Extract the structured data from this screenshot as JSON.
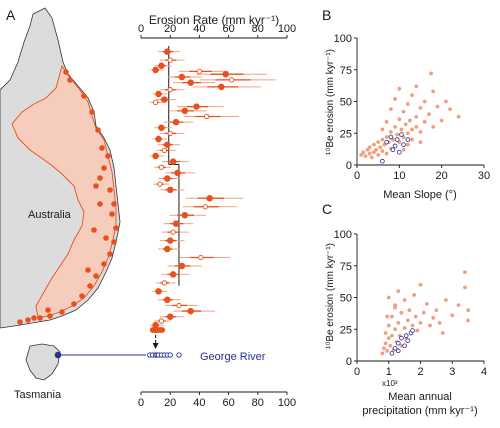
{
  "colors": {
    "orange": "#e8501c",
    "orange_light": "#f2a283",
    "salmon": "#f0a07f",
    "navy": "#2b2f8f",
    "land": "#dcdcdc",
    "outline": "#333333"
  },
  "panel_labels": {
    "a": "A",
    "b": "B",
    "c": "C"
  },
  "map": {
    "label_australia": "Australia",
    "label_tasmania": "Tasmania",
    "label_george": "George River"
  },
  "chart_data": [
    {
      "id": "A",
      "type": "scatter",
      "title": "Erosion Rate (mm kyr⁻¹)",
      "xlim": [
        0,
        100
      ],
      "xticks": [
        0,
        20,
        40,
        60,
        80,
        100
      ],
      "mean_lines": [
        {
          "value": 19,
          "from": 0,
          "to": 0.42
        },
        {
          "value": 26,
          "from": 0.42,
          "to": 0.85
        }
      ],
      "george_mean": 10,
      "series": [
        {
          "name": "Catchments",
          "points": [
            [
              18,
              0.02
            ],
            [
              20,
              0.05
            ],
            [
              14,
              0.07
            ],
            [
              10,
              0.085
            ],
            [
              40,
              0.09
            ],
            [
              58,
              0.1
            ],
            [
              28,
              0.11
            ],
            [
              62,
              0.12
            ],
            [
              34,
              0.13
            ],
            [
              55,
              0.145
            ],
            [
              20,
              0.155
            ],
            [
              12,
              0.17
            ],
            [
              16,
              0.19
            ],
            [
              10,
              0.2
            ],
            [
              38,
              0.215
            ],
            [
              30,
              0.23
            ],
            [
              45,
              0.25
            ],
            [
              24,
              0.27
            ],
            [
              14,
              0.29
            ],
            [
              20,
              0.31
            ],
            [
              12,
              0.33
            ],
            [
              18,
              0.35
            ],
            [
              16,
              0.37
            ],
            [
              10,
              0.39
            ],
            [
              22,
              0.41
            ],
            [
              14,
              0.43
            ],
            [
              25,
              0.45
            ],
            [
              18,
              0.47
            ],
            [
              13,
              0.49
            ],
            [
              20,
              0.51
            ],
            [
              47,
              0.54
            ],
            [
              44,
              0.57
            ],
            [
              30,
              0.6
            ],
            [
              24,
              0.63
            ],
            [
              22,
              0.66
            ],
            [
              20,
              0.69
            ],
            [
              18,
              0.72
            ],
            [
              41,
              0.75
            ],
            [
              28,
              0.78
            ],
            [
              22,
              0.81
            ],
            [
              16,
              0.84
            ],
            [
              12,
              0.87
            ],
            [
              18,
              0.9
            ],
            [
              26,
              0.92
            ],
            [
              34,
              0.94
            ],
            [
              20,
              0.96
            ],
            [
              14,
              0.975
            ],
            [
              10,
              0.99
            ]
          ]
        },
        {
          "name": "George River",
          "points": [
            [
              6,
              0
            ],
            [
              8,
              0
            ],
            [
              10,
              0
            ],
            [
              11,
              0
            ],
            [
              12,
              0
            ],
            [
              14,
              0
            ],
            [
              16,
              0
            ],
            [
              18,
              0
            ],
            [
              20,
              0
            ],
            [
              26,
              0
            ]
          ]
        }
      ]
    },
    {
      "id": "B",
      "type": "scatter",
      "xlabel": "Mean Slope (°)",
      "ylabel": "¹⁰Be erosion (mm kyr⁻¹)",
      "xlim": [
        0,
        30
      ],
      "xticks": [
        0,
        10,
        20,
        30
      ],
      "ylim": [
        0,
        100
      ],
      "yticks": [
        0,
        25,
        50,
        75,
        100
      ],
      "series": [
        {
          "name": "Catchments",
          "points": [
            [
              1,
              8
            ],
            [
              1.5,
              10
            ],
            [
              2,
              7
            ],
            [
              2.5,
              12
            ],
            [
              3,
              9
            ],
            [
              3,
              14
            ],
            [
              3.5,
              6
            ],
            [
              4,
              10
            ],
            [
              4,
              16
            ],
            [
              4.5,
              12
            ],
            [
              5,
              8
            ],
            [
              5,
              18
            ],
            [
              5.5,
              14
            ],
            [
              6,
              11
            ],
            [
              6,
              20
            ],
            [
              6.5,
              16
            ],
            [
              7,
              9
            ],
            [
              7,
              22
            ],
            [
              7.5,
              18
            ],
            [
              8,
              13
            ],
            [
              8,
              26
            ],
            [
              8.5,
              20
            ],
            [
              9,
              15
            ],
            [
              9,
              30
            ],
            [
              9.5,
              24
            ],
            [
              10,
              18
            ],
            [
              10,
              36
            ],
            [
              10.5,
              28
            ],
            [
              11,
              22
            ],
            [
              11,
              42
            ],
            [
              11.5,
              32
            ],
            [
              12,
              25
            ],
            [
              12,
              48
            ],
            [
              12.5,
              35
            ],
            [
              13,
              28
            ],
            [
              13,
              55
            ],
            [
              14,
              38
            ],
            [
              14,
              30
            ],
            [
              15,
              45
            ],
            [
              15,
              26
            ],
            [
              16,
              50
            ],
            [
              16,
              34
            ],
            [
              17,
              40
            ],
            [
              17.5,
              72
            ],
            [
              18,
              30
            ],
            [
              18,
              58
            ],
            [
              19,
              46
            ],
            [
              20,
              35
            ],
            [
              21,
              50
            ],
            [
              22,
              44
            ],
            [
              24,
              38
            ],
            [
              9,
              52
            ],
            [
              10,
              60
            ],
            [
              11,
              12
            ],
            [
              12,
              16
            ],
            [
              6,
              28
            ],
            [
              7,
              34
            ],
            [
              8,
              44
            ],
            [
              13,
              20
            ],
            [
              14,
              62
            ],
            [
              15,
              18
            ]
          ]
        },
        {
          "name": "George River",
          "points": [
            [
              6,
              3
            ],
            [
              7,
              18
            ],
            [
              8,
              22
            ],
            [
              8.5,
              12
            ],
            [
              9,
              15
            ],
            [
              9.5,
              20
            ],
            [
              10,
              10
            ],
            [
              10.5,
              24
            ],
            [
              11,
              16
            ],
            [
              12,
              20
            ]
          ]
        }
      ]
    },
    {
      "id": "C",
      "type": "scatter",
      "xlabel": "Mean annual precipitation (mm kyr⁻¹)",
      "xlabel_line1": "Mean annual",
      "xlabel_line2": "precipitation (mm kyr⁻¹)",
      "x_multiplier": "x10³",
      "ylabel": "¹⁰Be erosion (mm kyr⁻¹)",
      "xlim": [
        0,
        4
      ],
      "xticks": [
        0,
        1,
        2,
        3,
        4
      ],
      "ylim": [
        0,
        100
      ],
      "yticks": [
        0,
        25,
        50,
        75,
        100
      ],
      "series": [
        {
          "name": "Catchments",
          "points": [
            [
              0.8,
              6
            ],
            [
              0.85,
              10
            ],
            [
              0.9,
              14
            ],
            [
              0.9,
              22
            ],
            [
              0.95,
              8
            ],
            [
              1.0,
              18
            ],
            [
              1.0,
              28
            ],
            [
              1.05,
              12
            ],
            [
              1.1,
              35
            ],
            [
              1.1,
              20
            ],
            [
              1.15,
              9
            ],
            [
              1.2,
              25
            ],
            [
              1.2,
              44
            ],
            [
              1.25,
              15
            ],
            [
              1.3,
              30
            ],
            [
              1.3,
              55
            ],
            [
              1.35,
              20
            ],
            [
              1.4,
              38
            ],
            [
              1.4,
              12
            ],
            [
              1.5,
              26
            ],
            [
              1.5,
              48
            ],
            [
              1.55,
              18
            ],
            [
              1.6,
              32
            ],
            [
              1.65,
              40
            ],
            [
              1.7,
              22
            ],
            [
              1.75,
              28
            ],
            [
              1.8,
              52
            ],
            [
              1.85,
              35
            ],
            [
              1.9,
              24
            ],
            [
              2.0,
              30
            ],
            [
              2.0,
              60
            ],
            [
              2.1,
              38
            ],
            [
              2.2,
              45
            ],
            [
              2.3,
              28
            ],
            [
              2.4,
              34
            ],
            [
              2.5,
              40
            ],
            [
              2.6,
              30
            ],
            [
              2.8,
              48
            ],
            [
              3.0,
              36
            ],
            [
              3.2,
              44
            ],
            [
              3.4,
              70
            ],
            [
              3.4,
              58
            ],
            [
              3.5,
              40
            ],
            [
              3.5,
              32
            ],
            [
              1.0,
              50
            ],
            [
              1.2,
              42
            ],
            [
              0.95,
              35
            ],
            [
              2.7,
              22
            ]
          ]
        },
        {
          "name": "George River",
          "points": [
            [
              1.1,
              6
            ],
            [
              1.2,
              10
            ],
            [
              1.3,
              14
            ],
            [
              1.4,
              18
            ],
            [
              1.5,
              12
            ],
            [
              1.55,
              20
            ],
            [
              1.6,
              16
            ],
            [
              1.7,
              22
            ],
            [
              1.75,
              24
            ],
            [
              1.3,
              8
            ]
          ]
        }
      ]
    }
  ]
}
